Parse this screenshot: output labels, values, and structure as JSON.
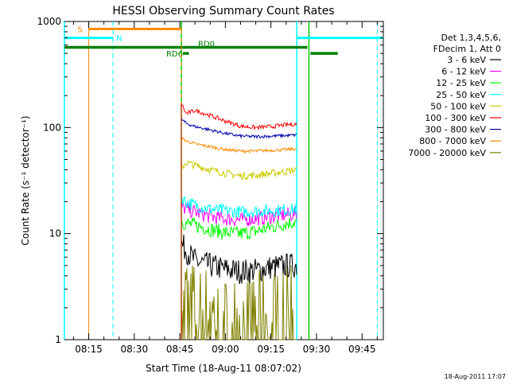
{
  "chart_data": {
    "type": "line",
    "title": "HESSI Observing Summary Count Rates",
    "xlabel": "Start Time (18-Aug-11 08:07:02)",
    "ylabel": "Count Rate (s⁻¹ detector⁻¹)",
    "x_unit": "minutes of day (UT)",
    "xlim": [
      487,
      592
    ],
    "ylim": [
      1,
      1000
    ],
    "y_scale": "log",
    "x_ticks": [
      "08:15",
      "08:30",
      "08:45",
      "09:00",
      "09:15",
      "09:30",
      "09:45"
    ],
    "y_ticks": [
      "1",
      "10",
      "100",
      "1000"
    ],
    "grid": false,
    "legend_position": "right",
    "legend_header": [
      "Det 1,3,4,5,6,",
      "FDecim 1, Att 0"
    ],
    "footer_stamp": "18-Aug-2011 17:07",
    "series": [
      {
        "name": "3 - 6 keV",
        "color": "#000000",
        "points": [
          [
            525.5,
            8
          ],
          [
            527,
            7
          ],
          [
            530,
            5.5
          ],
          [
            535,
            5
          ],
          [
            540,
            4.6
          ],
          [
            545,
            4.4
          ],
          [
            550,
            4.5
          ],
          [
            555,
            4.8
          ],
          [
            560,
            5
          ],
          [
            563.5,
            5
          ]
        ]
      },
      {
        "name": "6 - 12 keV",
        "color": "#ff00ff",
        "points": [
          [
            525.5,
            18
          ],
          [
            527,
            17
          ],
          [
            530,
            16
          ],
          [
            535,
            14.5
          ],
          [
            540,
            13.8
          ],
          [
            545,
            13.5
          ],
          [
            550,
            13.8
          ],
          [
            555,
            14.5
          ],
          [
            560,
            15
          ],
          [
            563.5,
            15.5
          ]
        ]
      },
      {
        "name": "12 - 25 keV",
        "color": "#00ff00",
        "points": [
          [
            525.5,
            13
          ],
          [
            527,
            12.5
          ],
          [
            530,
            12
          ],
          [
            535,
            11
          ],
          [
            540,
            10.2
          ],
          [
            545,
            10
          ],
          [
            550,
            10.5
          ],
          [
            555,
            11.5
          ],
          [
            560,
            12.5
          ],
          [
            563.5,
            13
          ]
        ]
      },
      {
        "name": "25 - 50 keV",
        "color": "#00ffff",
        "points": [
          [
            525.5,
            22
          ],
          [
            527,
            20
          ],
          [
            530,
            18.5
          ],
          [
            535,
            17
          ],
          [
            540,
            16.5
          ],
          [
            545,
            16
          ],
          [
            550,
            16.3
          ],
          [
            555,
            16.5
          ],
          [
            560,
            16.8
          ],
          [
            563.5,
            17
          ]
        ]
      },
      {
        "name": "50 - 100 keV",
        "color": "#cccc00",
        "points": [
          [
            525.5,
            40
          ],
          [
            527,
            47
          ],
          [
            530,
            44
          ],
          [
            535,
            40
          ],
          [
            540,
            37
          ],
          [
            545,
            35
          ],
          [
            550,
            35.5
          ],
          [
            555,
            37
          ],
          [
            560,
            38.5
          ],
          [
            563.5,
            40
          ]
        ]
      },
      {
        "name": "100 - 300 keV",
        "color": "#ff0000",
        "points": [
          [
            525.5,
            170
          ],
          [
            527,
            135
          ],
          [
            530,
            145
          ],
          [
            535,
            130
          ],
          [
            540,
            115
          ],
          [
            545,
            103
          ],
          [
            550,
            100
          ],
          [
            555,
            102
          ],
          [
            560,
            106
          ],
          [
            563.5,
            108
          ]
        ]
      },
      {
        "name": "300 - 800 keV",
        "color": "#0000aa",
        "points": [
          [
            525.5,
            120
          ],
          [
            527,
            110
          ],
          [
            530,
            102
          ],
          [
            535,
            95
          ],
          [
            540,
            88
          ],
          [
            545,
            83
          ],
          [
            550,
            82
          ],
          [
            555,
            83
          ],
          [
            560,
            84
          ],
          [
            563.5,
            85
          ]
        ]
      },
      {
        "name": "800 - 7000 keV",
        "color": "#ff8800",
        "points": [
          [
            525.5,
            80
          ],
          [
            527,
            75
          ],
          [
            530,
            70
          ],
          [
            535,
            66
          ],
          [
            540,
            62
          ],
          [
            545,
            60
          ],
          [
            550,
            60
          ],
          [
            555,
            61
          ],
          [
            560,
            62
          ],
          [
            563.5,
            63
          ]
        ]
      },
      {
        "name": "7000 - 20000 keV",
        "color": "#808000",
        "points": [
          [
            525.5,
            3
          ],
          [
            527,
            2.5
          ],
          [
            530,
            2
          ],
          [
            535,
            1.8
          ],
          [
            540,
            1.5
          ],
          [
            545,
            1.5
          ],
          [
            550,
            1.6
          ],
          [
            555,
            1.7
          ],
          [
            560,
            1.8
          ],
          [
            563.5,
            2
          ]
        ]
      }
    ],
    "markers": [
      {
        "label": "S",
        "color": "#ff8800",
        "bar_y": 850,
        "bar_x": [
          495,
          525.5
        ],
        "line_x": 495,
        "line_style": "solid"
      },
      {
        "label": "N",
        "color": "#00ffff",
        "bar_y": 700,
        "bar_x": [
          487,
          503
        ],
        "bar2_x": [
          563.5,
          592
        ],
        "line_x": [
          503,
          590
        ],
        "line_style": "dashed"
      },
      {
        "label": "RD0",
        "color": "#008000",
        "bar_y": 570,
        "bar_x": [
          487,
          567
        ]
      },
      {
        "label": "RD6",
        "color": "#008000",
        "bar_y": 500,
        "bar_x": [
          526,
          528
        ],
        "bar2_x": [
          568,
          577
        ]
      }
    ],
    "extra_lines": [
      {
        "name": "green-vertical",
        "color": "#00cc00",
        "x": [
          525.5,
          567.5
        ]
      },
      {
        "name": "cyan-vertical",
        "color": "#00ffff",
        "x": [
          487,
          563.5
        ]
      }
    ]
  },
  "legend": {
    "header1": "Det 1,3,4,5,6,",
    "header2": "FDecim 1, Att 0",
    "entries": [
      {
        "label": "3 - 6 keV",
        "color": "#000000"
      },
      {
        "label": "6 - 12 keV",
        "color": "#ff00ff"
      },
      {
        "label": "12 - 25 keV",
        "color": "#00ff00"
      },
      {
        "label": "25 - 50 keV",
        "color": "#00ffff"
      },
      {
        "label": "50 - 100 keV",
        "color": "#cccc00"
      },
      {
        "label": "100 - 300 keV",
        "color": "#ff0000"
      },
      {
        "label": "300 - 800 keV",
        "color": "#0000aa"
      },
      {
        "label": "800 - 7000 keV",
        "color": "#ff8800"
      },
      {
        "label": "7000 - 20000 keV",
        "color": "#808000"
      }
    ]
  }
}
